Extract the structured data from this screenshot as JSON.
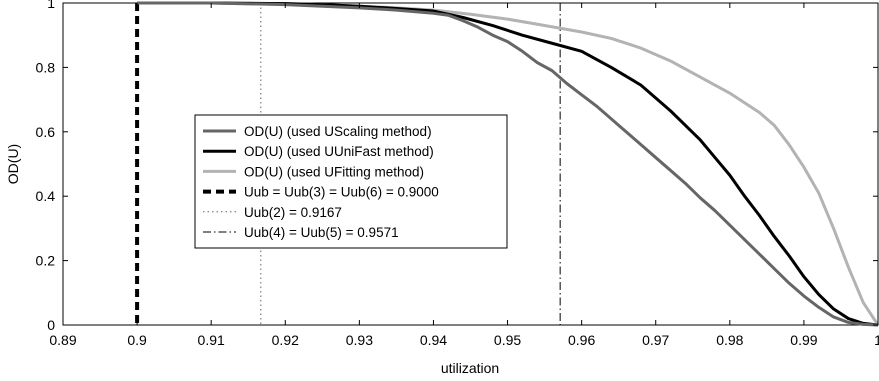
{
  "chart_data": {
    "type": "line",
    "title": "",
    "xlabel": "utilization",
    "ylabel": "OD(U)",
    "xlim": [
      0.89,
      1.0
    ],
    "ylim": [
      0,
      1
    ],
    "xticks": [
      0.89,
      0.9,
      0.91,
      0.92,
      0.93,
      0.94,
      0.95,
      0.96,
      0.97,
      0.98,
      0.99,
      1
    ],
    "xtick_labels": [
      "0.89",
      "0.9",
      "0.91",
      "0.92",
      "0.93",
      "0.94",
      "0.95",
      "0.96",
      "0.97",
      "0.98",
      "0.99",
      "1"
    ],
    "yticks": [
      0,
      0.2,
      0.4,
      0.6,
      0.8,
      1
    ],
    "ytick_labels": [
      "0",
      "0.2",
      "0.4",
      "0.6",
      "0.8",
      "1"
    ],
    "grid": false,
    "legend_position": "center-left",
    "series": [
      {
        "name": "OD(U) (used UScaling method)",
        "color": "#666666",
        "style": "solid",
        "x": [
          0.9,
          0.91,
          0.92,
          0.925,
          0.93,
          0.935,
          0.94,
          0.942,
          0.944,
          0.946,
          0.948,
          0.95,
          0.952,
          0.954,
          0.956,
          0.958,
          0.96,
          0.962,
          0.964,
          0.966,
          0.968,
          0.97,
          0.972,
          0.974,
          0.976,
          0.978,
          0.98,
          0.982,
          0.984,
          0.986,
          0.988,
          0.99,
          0.992,
          0.994,
          0.996,
          0.998,
          1.0
        ],
        "y": [
          1.0,
          1.0,
          0.995,
          0.99,
          0.985,
          0.978,
          0.968,
          0.962,
          0.945,
          0.925,
          0.9,
          0.88,
          0.85,
          0.815,
          0.79,
          0.75,
          0.715,
          0.68,
          0.64,
          0.6,
          0.56,
          0.52,
          0.48,
          0.44,
          0.395,
          0.355,
          0.31,
          0.265,
          0.22,
          0.175,
          0.13,
          0.09,
          0.055,
          0.025,
          0.008,
          0.002,
          0.0
        ]
      },
      {
        "name": "OD(U) (used UUniFast method)",
        "color": "#000000",
        "style": "solid",
        "x": [
          0.9,
          0.91,
          0.92,
          0.925,
          0.93,
          0.935,
          0.94,
          0.944,
          0.948,
          0.952,
          0.956,
          0.96,
          0.964,
          0.968,
          0.97,
          0.972,
          0.974,
          0.976,
          0.978,
          0.98,
          0.982,
          0.984,
          0.986,
          0.988,
          0.99,
          0.992,
          0.994,
          0.996,
          0.998,
          1.0
        ],
        "y": [
          1.0,
          1.0,
          0.998,
          0.995,
          0.99,
          0.983,
          0.975,
          0.955,
          0.93,
          0.9,
          0.875,
          0.85,
          0.8,
          0.745,
          0.705,
          0.665,
          0.62,
          0.575,
          0.52,
          0.465,
          0.4,
          0.34,
          0.275,
          0.215,
          0.15,
          0.095,
          0.05,
          0.02,
          0.005,
          0.0
        ]
      },
      {
        "name": "OD(U) (used UFitting method)",
        "color": "#b3b3b3",
        "style": "solid",
        "x": [
          0.9,
          0.91,
          0.92,
          0.925,
          0.93,
          0.935,
          0.94,
          0.945,
          0.95,
          0.955,
          0.96,
          0.964,
          0.968,
          0.972,
          0.976,
          0.98,
          0.984,
          0.986,
          0.988,
          0.99,
          0.992,
          0.994,
          0.996,
          0.998,
          1.0
        ],
        "y": [
          1.0,
          1.0,
          0.998,
          0.995,
          0.99,
          0.985,
          0.978,
          0.965,
          0.95,
          0.93,
          0.91,
          0.89,
          0.86,
          0.82,
          0.77,
          0.72,
          0.66,
          0.62,
          0.56,
          0.49,
          0.41,
          0.3,
          0.18,
          0.07,
          0.0
        ]
      }
    ],
    "reference_lines": [
      {
        "name": "Uub = Uub(3) = Uub(6) = 0.9000",
        "x": 0.9,
        "color": "#000000",
        "style": "dashed-bold"
      },
      {
        "name": "Uub(2) = 0.9167",
        "x": 0.9167,
        "color": "#666666",
        "style": "dotted"
      },
      {
        "name": "Uub(4) = Uub(5) = 0.9571",
        "x": 0.9571,
        "color": "#000000",
        "style": "dashdot"
      }
    ]
  }
}
